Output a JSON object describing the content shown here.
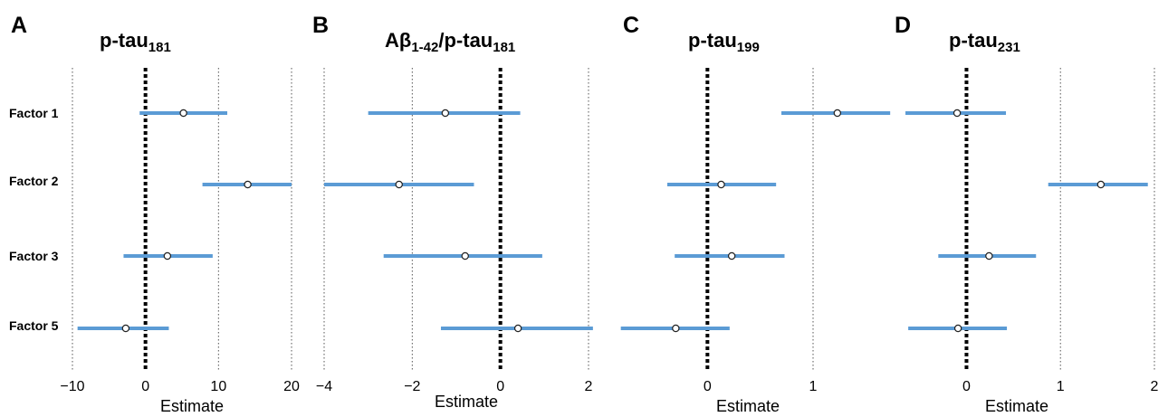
{
  "x_axis_label": "Estimate",
  "factors": [
    "Factor 1",
    "Factor 2",
    "Factor 3",
    "Factor 5"
  ],
  "ci_color": "#5b9bd5",
  "chart_data": [
    {
      "type": "forest",
      "panel": "A",
      "title": "p-tau",
      "title_sub": "181",
      "xlabel": "Estimate",
      "xlim": [
        -10,
        20
      ],
      "xticks": [
        -10,
        0,
        10,
        20
      ],
      "xtick_labels": [
        "−10",
        "0",
        "10",
        "20"
      ],
      "categories": [
        "Factor 1",
        "Factor 2",
        "Factor 3",
        "Factor 5"
      ],
      "estimates": [
        5.2,
        14.0,
        3.0,
        -2.7
      ],
      "ci_low": [
        -0.8,
        7.8,
        -3.0,
        -9.3
      ],
      "ci_high": [
        11.2,
        20.0,
        9.2,
        3.2
      ],
      "reference_line": 0
    },
    {
      "type": "forest",
      "panel": "B",
      "title": "Aβ",
      "title_sub": "1-42",
      "title_tail": "/p-tau",
      "title_tail_sub": "181",
      "xlabel": "Estimate",
      "xlim": [
        -4,
        2
      ],
      "xticks": [
        -4,
        -2,
        0,
        2
      ],
      "xtick_labels": [
        "−4",
        "−2",
        "0",
        "2"
      ],
      "categories": [
        "Factor 1",
        "Factor 2",
        "Factor 3",
        "Factor 5"
      ],
      "estimates": [
        -1.25,
        -2.3,
        -0.8,
        0.4
      ],
      "ci_low": [
        -3.0,
        -4.0,
        -2.65,
        -1.35
      ],
      "ci_high": [
        0.45,
        -0.6,
        0.95,
        2.1
      ],
      "reference_line": 0
    },
    {
      "type": "forest",
      "panel": "C",
      "title": "p-tau",
      "title_sub": "199",
      "xlabel": "Estimate",
      "xlim": [
        -0.8,
        1.6
      ],
      "xticks": [
        0,
        1
      ],
      "xtick_labels": [
        "0",
        "1"
      ],
      "categories": [
        "Factor 1",
        "Factor 2",
        "Factor 3",
        "Factor 5"
      ],
      "estimates": [
        1.23,
        0.13,
        0.23,
        -0.3
      ],
      "ci_low": [
        0.7,
        -0.38,
        -0.31,
        -0.82
      ],
      "ci_high": [
        1.73,
        0.65,
        0.73,
        0.21
      ],
      "reference_line": 0
    },
    {
      "type": "forest",
      "panel": "D",
      "title": "p-tau",
      "title_sub": "231",
      "xlabel": "Estimate",
      "xlim": [
        -0.65,
        2
      ],
      "xticks": [
        0,
        1,
        2
      ],
      "xtick_labels": [
        "0",
        "1",
        "2"
      ],
      "categories": [
        "Factor 1",
        "Factor 2",
        "Factor 3",
        "Factor 5"
      ],
      "estimates": [
        -0.1,
        1.43,
        0.24,
        -0.09
      ],
      "ci_low": [
        -0.65,
        0.87,
        -0.3,
        -0.62
      ],
      "ci_high": [
        0.42,
        1.93,
        0.74,
        0.43
      ],
      "reference_line": 0
    }
  ]
}
